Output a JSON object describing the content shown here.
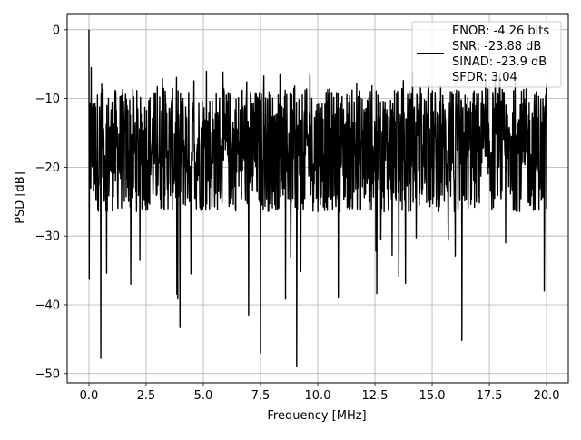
{
  "chart_data": {
    "type": "line",
    "title": "",
    "xlabel": "Frequency [MHz]",
    "ylabel": "PSD [dB]",
    "xlim": [
      -0.95,
      20.95
    ],
    "ylim": [
      -51.35,
      2.35
    ],
    "xticks": [
      0.0,
      2.5,
      5.0,
      7.5,
      10.0,
      12.5,
      15.0,
      17.5,
      20.0
    ],
    "xtick_labels": [
      "0.0",
      "2.5",
      "5.0",
      "7.5",
      "10.0",
      "12.5",
      "15.0",
      "17.5",
      "20.0"
    ],
    "yticks": [
      0,
      -10,
      -20,
      -30,
      -40,
      -50
    ],
    "ytick_labels": [
      "0",
      "−10",
      "−20",
      "−30",
      "−40",
      "−50"
    ],
    "grid": true,
    "legend_position": "top-right",
    "series": [
      {
        "color": "#000000",
        "x_range": [
          0.0,
          20.0
        ],
        "baseline_db": -17.5,
        "spread_db": 9,
        "x": [
          0.0,
          0.1,
          0.52,
          1.83,
          3.98,
          4.46,
          6.98,
          7.5,
          9.08,
          10.9,
          13.25,
          16.3,
          19.9
        ],
        "values": [
          0.0,
          -5.5,
          -47.8,
          -37.0,
          -43.2,
          -35.5,
          -41.5,
          -47.0,
          -49.0,
          -39.0,
          -32.8,
          -45.2,
          -38.0
        ]
      }
    ],
    "legend": {
      "lines": [
        "ENOB: -4.26 bits",
        "SNR: -23.88 dB",
        "SINAD: -23.9 dB",
        "SFDR: 3.04"
      ]
    }
  }
}
